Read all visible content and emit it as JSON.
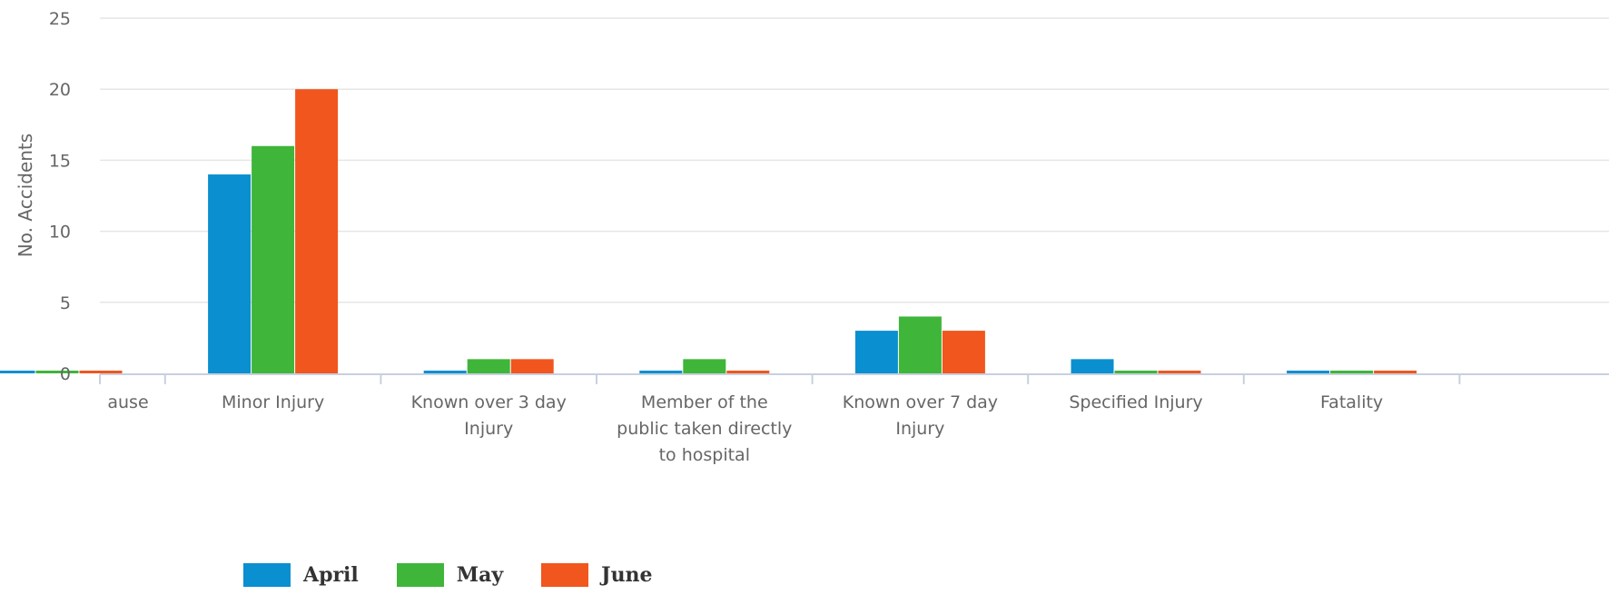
{
  "chart_data": {
    "type": "bar",
    "title": "",
    "xlabel": "",
    "ylabel": "No. Accidents",
    "ylim": [
      0,
      25
    ],
    "yticks": [
      0,
      5,
      10,
      15,
      20,
      25
    ],
    "grid": true,
    "legend_position": "bottom-left",
    "categories": [
      "ause",
      "Minor Injury",
      "Known over 3 day Injury",
      "Member of the public taken directly to hospital",
      "Known over 7 day Injury",
      "Specified Injury",
      "Fatality"
    ],
    "category_lines": [
      [
        "ause"
      ],
      [
        "Minor Injury"
      ],
      [
        "Known over 3 day",
        "Injury"
      ],
      [
        "Member of the",
        "public taken directly",
        "to hospital"
      ],
      [
        "Known over 7 day",
        "Injury"
      ],
      [
        "Specified Injury"
      ],
      [
        "Fatality"
      ]
    ],
    "series": [
      {
        "name": "April",
        "color": "#0a8fd0",
        "values": [
          0,
          14,
          0,
          0,
          3,
          1,
          0
        ]
      },
      {
        "name": "May",
        "color": "#3fb53a",
        "values": [
          0,
          16,
          1,
          1,
          4,
          0,
          0
        ]
      },
      {
        "name": "June",
        "color": "#f0561d",
        "values": [
          0,
          20,
          1,
          0,
          3,
          0,
          0
        ]
      }
    ]
  },
  "legend": {
    "items": [
      {
        "label": "April",
        "color": "#0a8fd0"
      },
      {
        "label": "May",
        "color": "#3fb53a"
      },
      {
        "label": "June",
        "color": "#f0561d"
      }
    ]
  }
}
